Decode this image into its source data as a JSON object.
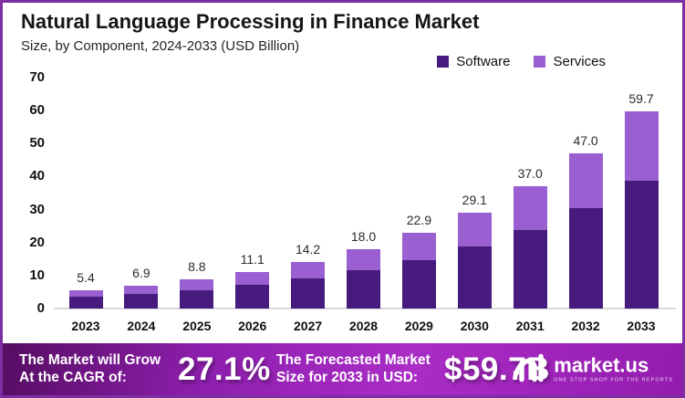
{
  "header": {
    "title": "Natural Language Processing in Finance Market",
    "subtitle": "Size, by Component, 2024-2033 (USD Billion)"
  },
  "chart_data": {
    "type": "bar",
    "stacked": true,
    "title": "Natural Language Processing in Finance Market",
    "subtitle": "Size, by Component, 2024-2033 (USD Billion)",
    "unit": "USD Billion",
    "categories": [
      "2023",
      "2024",
      "2025",
      "2026",
      "2027",
      "2028",
      "2029",
      "2030",
      "2031",
      "2032",
      "2033"
    ],
    "series": [
      {
        "name": "Software",
        "color": "#471a7d",
        "values": [
          3.5,
          4.4,
          5.6,
          7.1,
          9.0,
          11.5,
          14.6,
          18.7,
          23.8,
          30.3,
          38.6
        ]
      },
      {
        "name": "Services",
        "color": "#9a5fd0",
        "values": [
          1.9,
          2.5,
          3.2,
          4.0,
          5.2,
          6.5,
          8.3,
          10.4,
          13.2,
          16.7,
          21.1
        ]
      }
    ],
    "totals": [
      5.4,
      6.9,
      8.8,
      11.1,
      14.2,
      18.0,
      22.9,
      29.1,
      37.0,
      47.0,
      59.7
    ],
    "total_labels": [
      "5.4",
      "6.9",
      "8.8",
      "11.1",
      "14.2",
      "18.0",
      "22.9",
      "29.1",
      "37.0",
      "47.0",
      "59.7"
    ],
    "y_ticks": [
      0,
      10,
      20,
      30,
      40,
      50,
      60,
      70
    ],
    "ylim": [
      0,
      70
    ],
    "grid": false,
    "legend_position": "top-right"
  },
  "footer": {
    "cagr_label": "The Market will Grow\nAt the CAGR of:",
    "cagr_value": "27.1%",
    "forecast_label": "The Forecasted Market\nSize for 2033 in USD:",
    "forecast_value": "$59.7B",
    "brand_name": "market.us",
    "brand_tagline": "ONE STOP SHOP FOR THE REPORTS"
  },
  "colors": {
    "software": "#471a7d",
    "services": "#9a5fd0",
    "frame_border": "#7b2fa3",
    "footer_gradient_start": "#560d62",
    "footer_gradient_mid": "#aa2dc6",
    "footer_gradient_end": "#931cae",
    "axis_line": "#d9d9d9",
    "background": "#ffffff"
  }
}
